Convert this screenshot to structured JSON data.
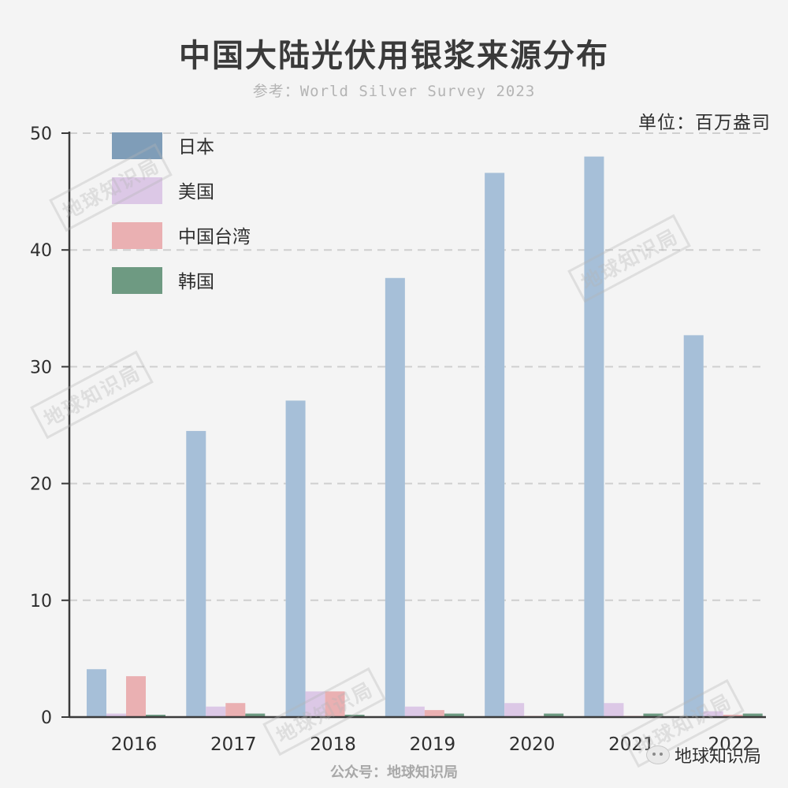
{
  "chart_data": {
    "type": "bar",
    "title": "中国大陆光伏用银浆来源分布",
    "subtitle": "参考：World Silver Survey 2023",
    "unit": "单位：百万盎司",
    "categories": [
      "2016",
      "2017",
      "2018",
      "2019",
      "2020",
      "2021",
      "2022"
    ],
    "series": [
      {
        "name": "日本",
        "color": "#a6bfd8",
        "values": [
          4.1,
          24.5,
          27.1,
          37.6,
          46.6,
          48.0,
          32.7
        ]
      },
      {
        "name": "美国",
        "color": "#dcc8e6",
        "values": [
          0.3,
          0.9,
          2.2,
          0.9,
          1.2,
          1.2,
          0.5
        ]
      },
      {
        "name": "中国台湾",
        "color": "#eab0b2",
        "values": [
          3.5,
          1.2,
          2.2,
          0.6,
          0.1,
          0.1,
          0.2
        ]
      },
      {
        "name": "韩国",
        "color": "#6e9a82",
        "values": [
          0.2,
          0.3,
          0.2,
          0.3,
          0.3,
          0.3,
          0.3
        ]
      }
    ],
    "legend_colors": [
      "#7f9db8",
      "#dcc8e6",
      "#eab0b2",
      "#6e9a82"
    ],
    "yticks": [
      0,
      10,
      20,
      30,
      40,
      50
    ],
    "ylim": [
      0,
      50
    ],
    "grid": true,
    "legend_position": "top-left"
  },
  "watermark_text": "地球知识局",
  "footer": "公众号：地球知识局",
  "brand": "地球知识局"
}
